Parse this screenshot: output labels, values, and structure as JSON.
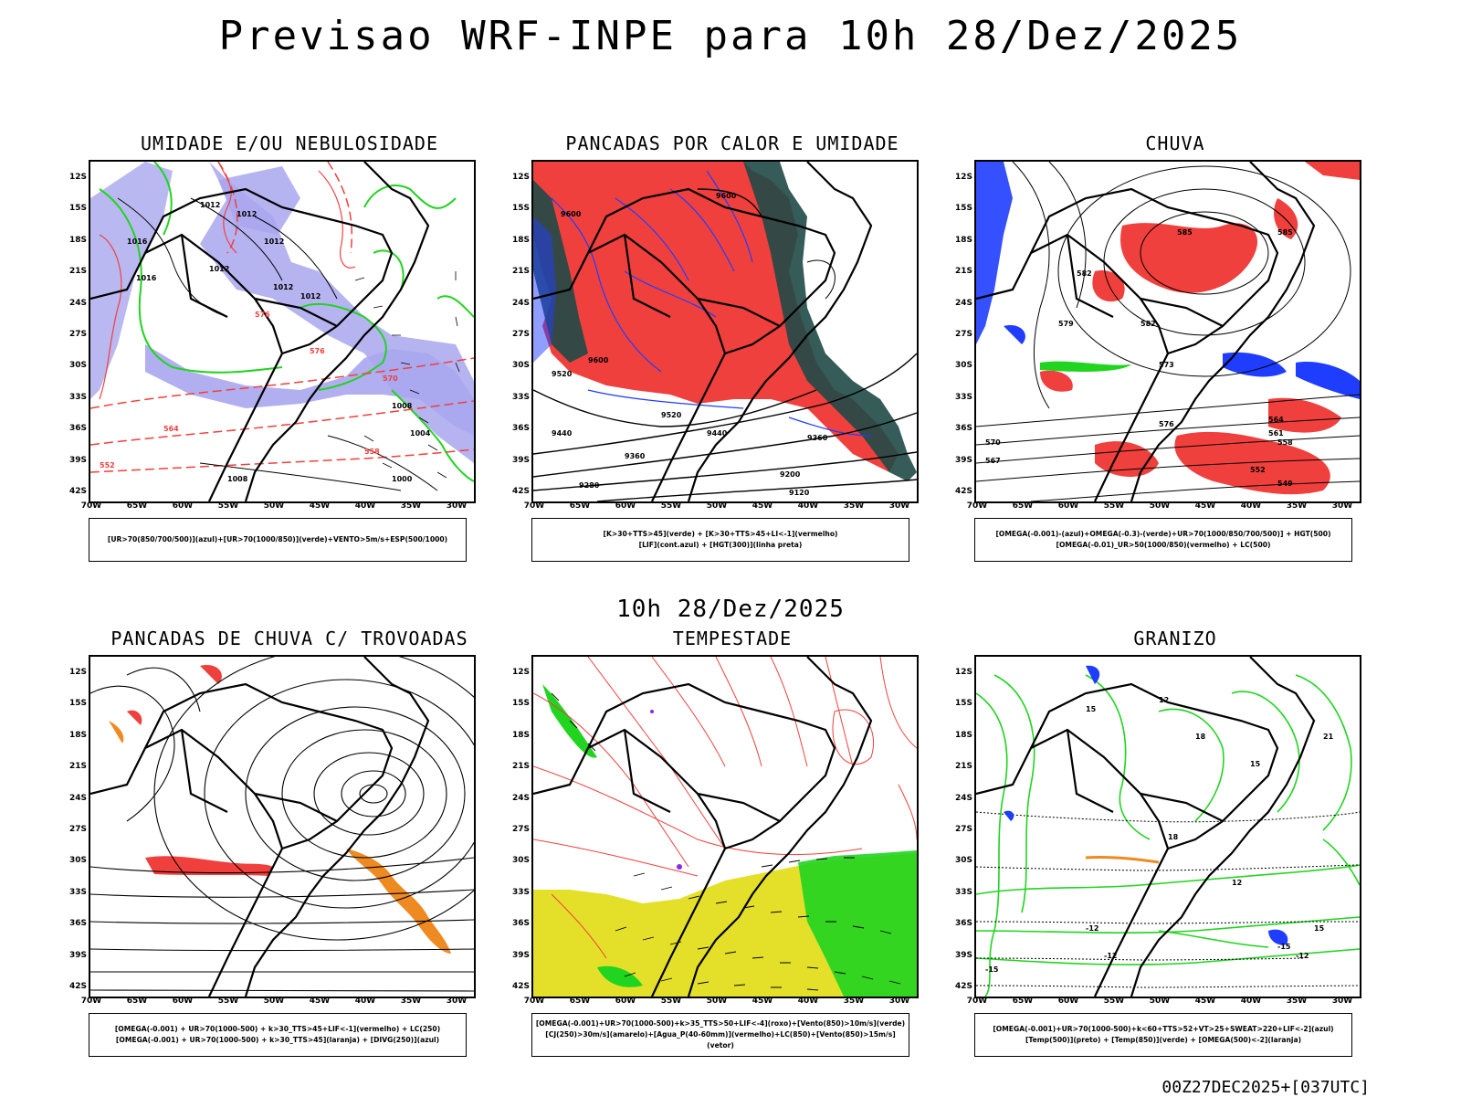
{
  "title": "Previsao WRF-INPE  para 10h 28/Dez/2025",
  "subtitle": "10h 28/Dez/2025",
  "footer": "00Z27DEC2025+[037UTC]",
  "axes": {
    "lat_labels": [
      "12S",
      "15S",
      "18S",
      "21S",
      "24S",
      "27S",
      "30S",
      "33S",
      "36S",
      "39S",
      "42S"
    ],
    "lon_labels": [
      "70W",
      "65W",
      "60W",
      "55W",
      "50W",
      "45W",
      "40W",
      "35W",
      "30W"
    ]
  },
  "colors": {
    "purple": "#a9a6ee",
    "red": "#f0403d",
    "green": "#20d420",
    "blue": "#1f3dff",
    "teal": "#1f4a47",
    "yellow": "#e4e02a",
    "orange": "#ef8a22",
    "black": "#000000"
  },
  "panels": [
    {
      "id": "umidade",
      "title": "UMIDADE E/OU NEBULOSIDADE",
      "legend": [
        "[UR>70(850/700/500)](azul)+[UR>70(1000/850)](verde)+VENTO>5m/s+ESP(500/1000)"
      ],
      "contour_labels": [
        "1012",
        "1012",
        "1012",
        "1012",
        "1016",
        "1016",
        "1012",
        "1012",
        "1008",
        "1004",
        "1000",
        "1008",
        "576",
        "576",
        "570",
        "564",
        "558",
        "552"
      ]
    },
    {
      "id": "pancadas_calor",
      "title": "PANCADAS POR CALOR E UMIDADE",
      "legend": [
        "[K>30+TTS>45](verde) + [K>30+TTS>45+LI<-1](vermelho)",
        "[LIF](cont.azul) + [HGT(300)](linha preta)"
      ],
      "contour_labels": [
        "9600",
        "9600",
        "9600",
        "9520",
        "9520",
        "9440",
        "9440",
        "9360",
        "9360",
        "9280",
        "9200",
        "9120"
      ]
    },
    {
      "id": "chuva",
      "title": "CHUVA",
      "legend": [
        "[OMEGA(-0.001)-(azul)+OMEGA(-0.3)-(verde)+UR>70(1000/850/700/500)] + HGT(500)",
        "[OMEGA(-0.01)_UR>50(1000/850)(vermelho) + LC(500)"
      ],
      "contour_labels": [
        "585",
        "585",
        "582",
        "582",
        "579",
        "576",
        "573",
        "570",
        "567",
        "564",
        "561",
        "558",
        "552",
        "549"
      ]
    },
    {
      "id": "pancadas_trovoadas",
      "title": "PANCADAS DE CHUVA C/ TROVOADAS",
      "legend": [
        "[OMEGA(-0.001) + UR>70(1000-500) + k>30_TTS>45+LIF<-1](vermelho) + LC(250)",
        "[OMEGA(-0.001) + UR>70(1000-500) + k>30_TTS>45](laranja) + [DIVG(250)](azul)"
      ],
      "contour_labels": []
    },
    {
      "id": "tempestade",
      "title": "TEMPESTADE",
      "legend": [
        "[OMEGA(-0.001)+UR>70(1000-500)+k>35_TTS>50+LIF<-4](roxo)+[Vento(850)>10m/s](verde)",
        "[CJ(250)>30m/s](amarelo)+[Agua_P(40-60mm)](vermelho)+LC(850)+[Vento(850)>15m/s](vetor)"
      ],
      "contour_labels": []
    },
    {
      "id": "granizo",
      "title": "GRANIZO",
      "legend": [
        "[OMEGA(-0.001)+UR>70(1000-500)+k<60+TTS>52+VT>25+SWEAT>220+LIF<-2](azul)",
        "[Temp(500)](preto) + [Temp(850)](verde) + [OMEGA(500)<-2](laranja)"
      ],
      "contour_labels": [
        "-12",
        "-15",
        "-12",
        "-15",
        "-12",
        "12",
        "15",
        "18",
        "21",
        "15",
        "12",
        "18",
        "15"
      ]
    }
  ]
}
